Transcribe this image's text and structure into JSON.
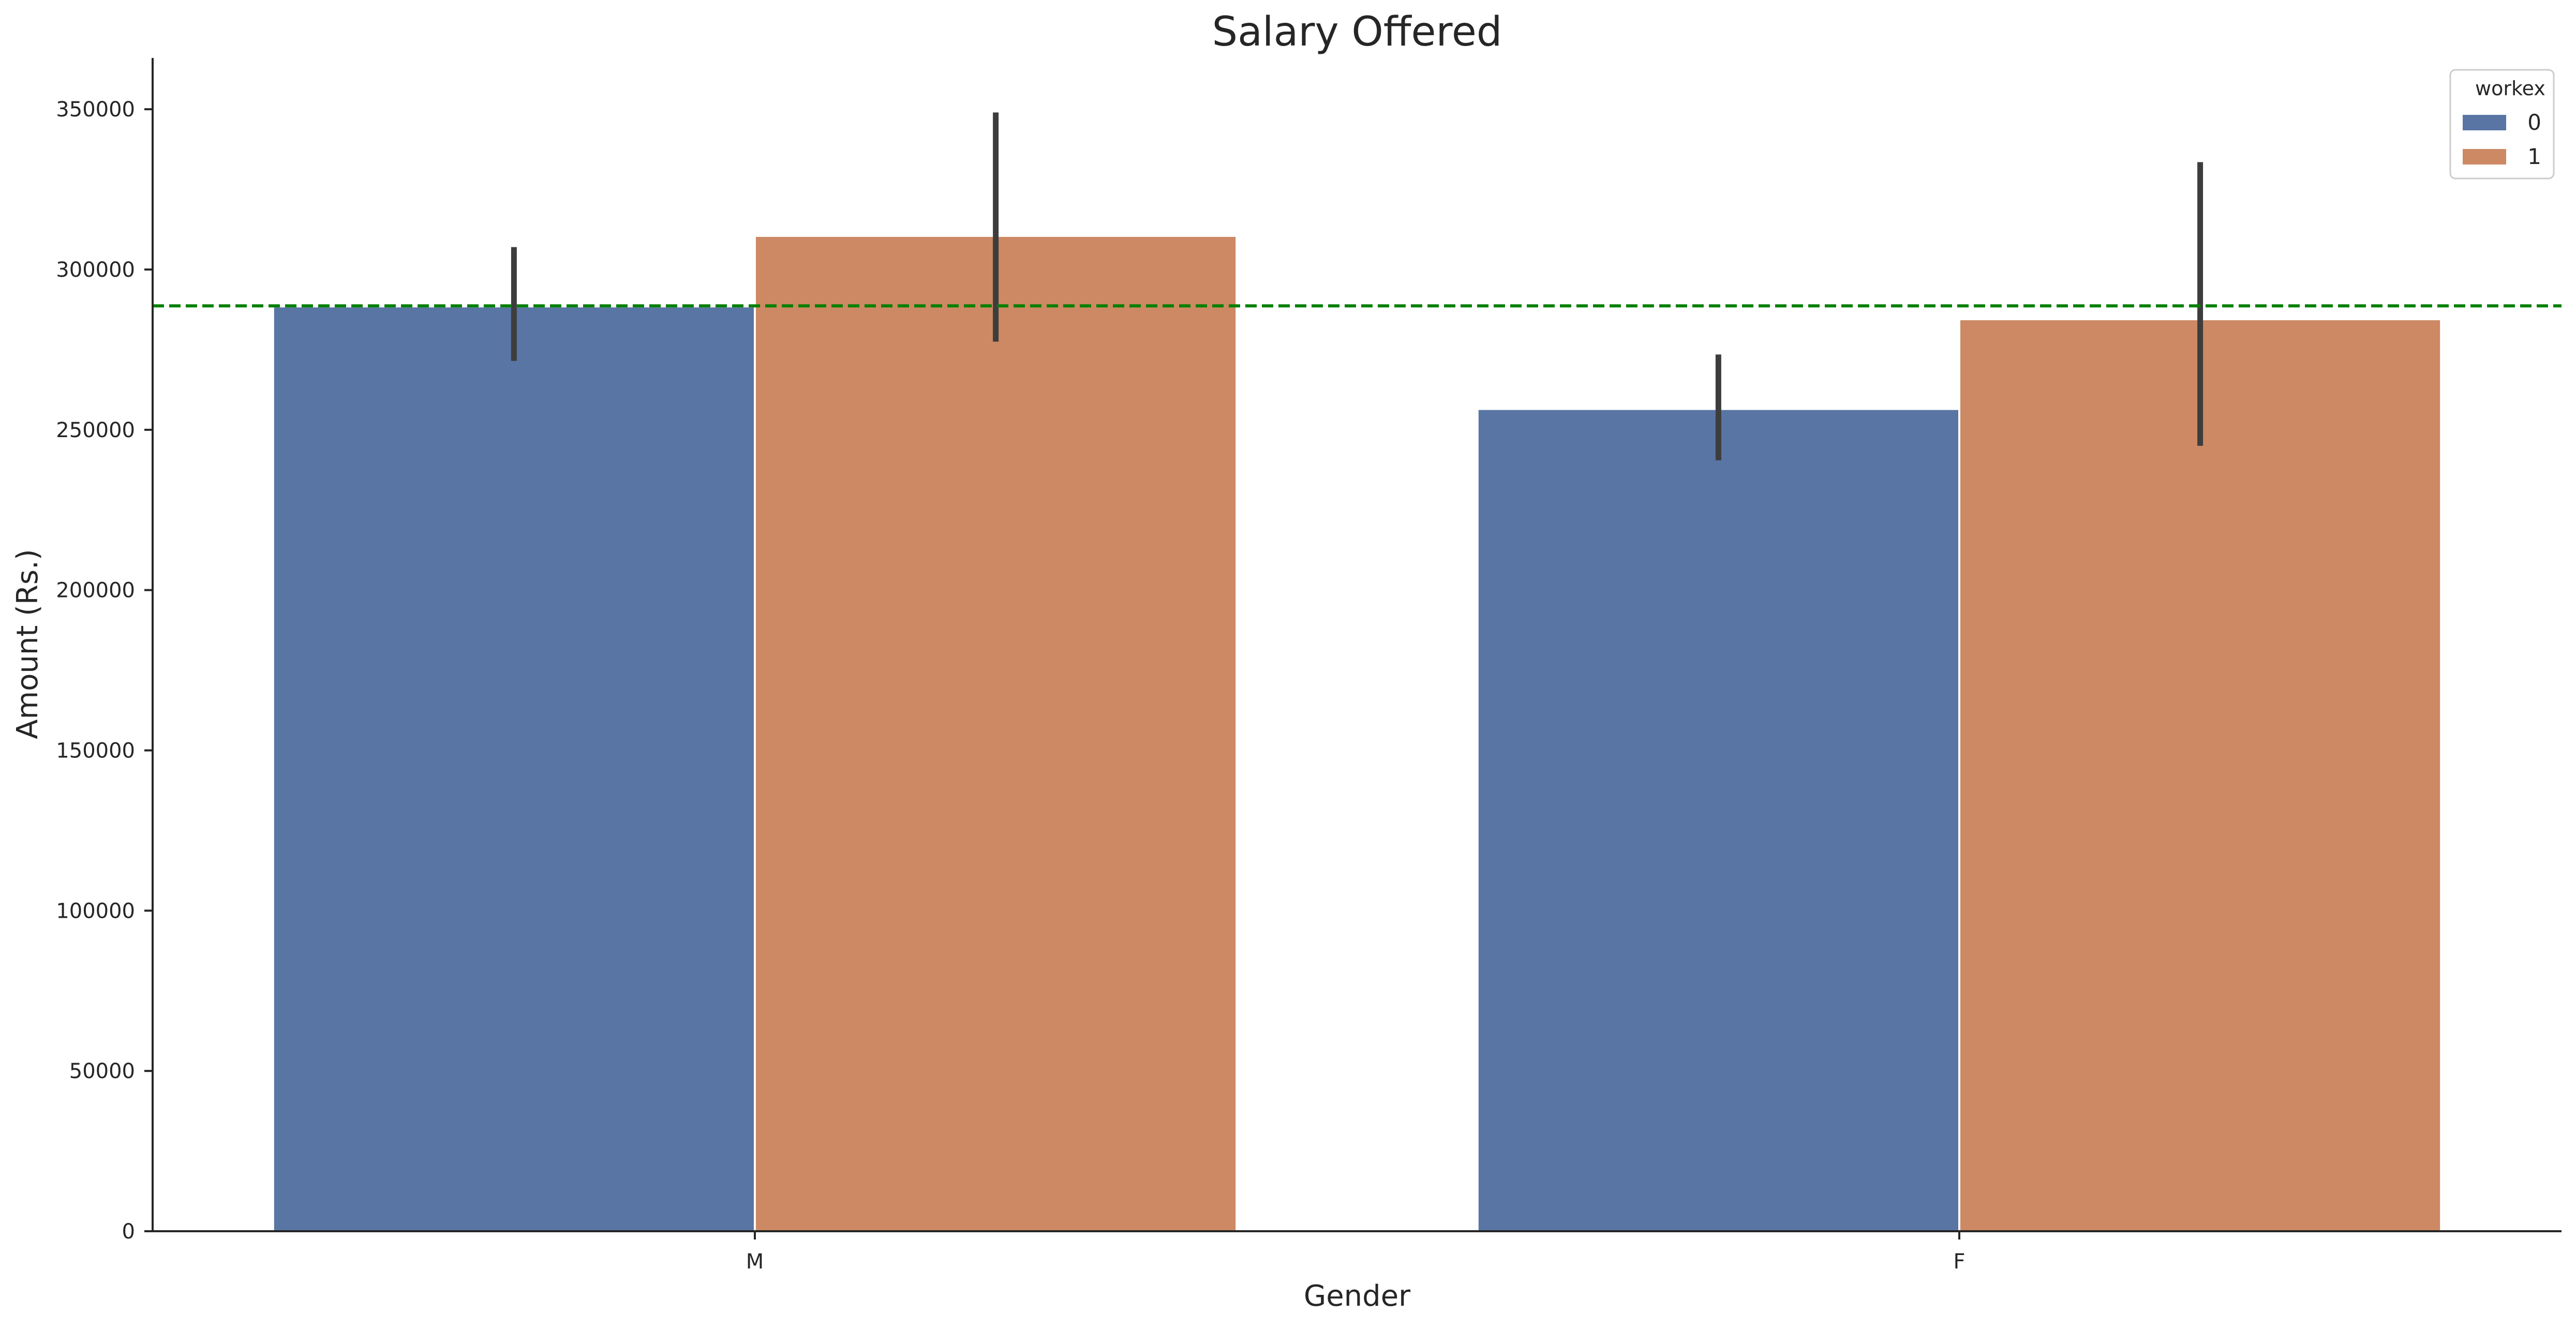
{
  "chart_data": {
    "type": "bar",
    "title": "Salary Offered",
    "xlabel": "Gender",
    "ylabel": "Amount (Rs.)",
    "categories": [
      "M",
      "F"
    ],
    "legend": {
      "title": "workex",
      "placement": "top-right"
    },
    "series": [
      {
        "name": "0",
        "color": "#5975a4",
        "values": [
          288500,
          256500
        ],
        "ci_low": [
          271500,
          240500
        ],
        "ci_high": [
          307000,
          273500
        ]
      },
      {
        "name": "1",
        "color": "#cc8963",
        "values": [
          310500,
          284500
        ],
        "ci_low": [
          277500,
          245000
        ],
        "ci_high": [
          349000,
          333500
        ]
      }
    ],
    "reference_line": {
      "value": 288655,
      "color": "#008000",
      "style": "dashed"
    },
    "ylim": [
      0,
      366000
    ],
    "yticks": [
      0,
      50000,
      100000,
      150000,
      200000,
      250000,
      300000,
      350000
    ],
    "grid": false
  }
}
